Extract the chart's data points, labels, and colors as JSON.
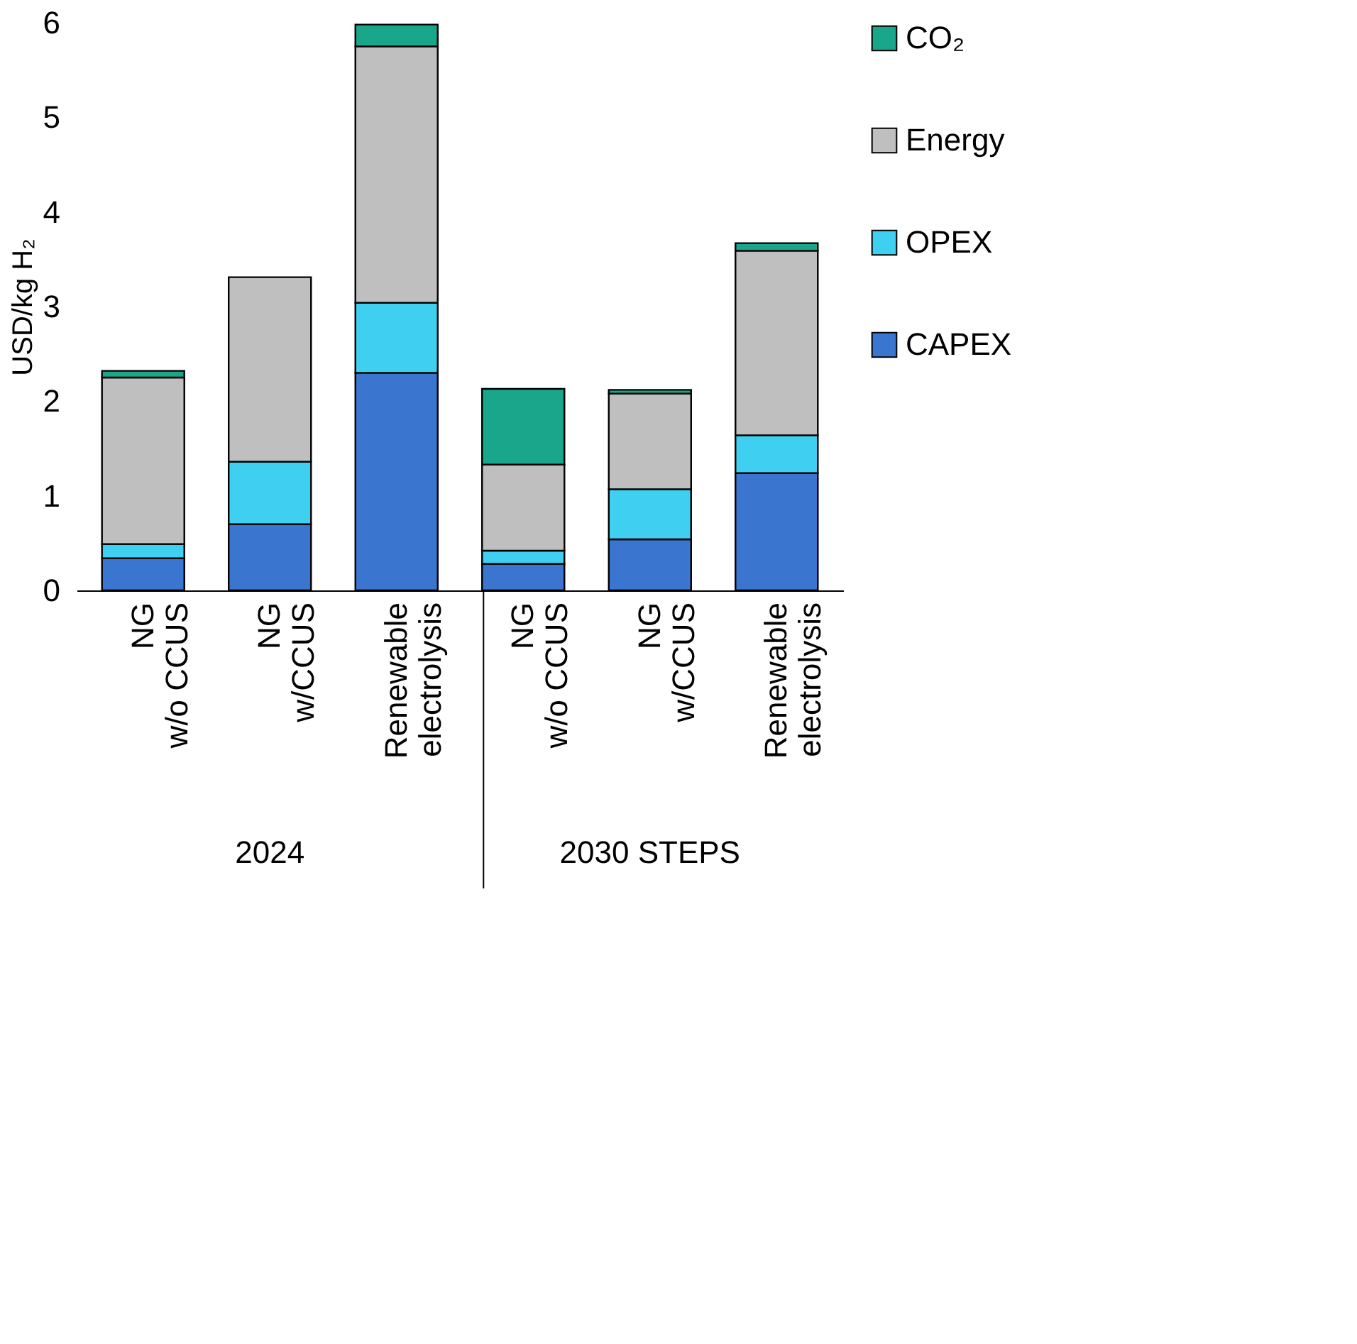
{
  "chart_data": {
    "type": "bar",
    "stacked": true,
    "ylabel": "USD/kg H₂",
    "categories": [
      "NG\nw/o CCUS",
      "NG\nw/CCUS",
      "Renewable\nelectrolysis",
      "NG\nw/o CCUS",
      "NG\nw/CCUS",
      "Renewable\nelectrolysis"
    ],
    "series": [
      {
        "name": "CAPEX",
        "color": "#3a75d0",
        "values": [
          0.34,
          0.7,
          2.3,
          0.28,
          0.54,
          1.24
        ]
      },
      {
        "name": "OPEX",
        "color": "#3fcff0",
        "values": [
          0.15,
          0.66,
          0.74,
          0.14,
          0.53,
          0.4
        ]
      },
      {
        "name": "Energy",
        "color": "#bfbfbf",
        "values": [
          1.76,
          1.95,
          2.71,
          0.91,
          1.01,
          1.95
        ]
      },
      {
        "name": "CO₂",
        "color": "#1aa68a",
        "values": [
          0.07,
          null,
          0.23,
          0.8,
          0.04,
          0.08
        ]
      }
    ],
    "ylim": [
      0,
      6
    ],
    "yticks": [
      0,
      1,
      2,
      3,
      4,
      5,
      6
    ],
    "grid": false,
    "legend": "right",
    "annotations": [
      "2024",
      "2030 STEPS"
    ]
  }
}
